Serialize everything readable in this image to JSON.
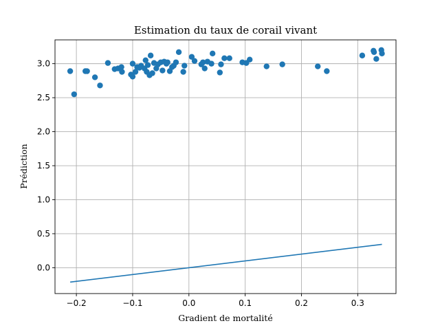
{
  "chart_data": {
    "type": "scatter",
    "title": "Estimation du taux de corail vivant",
    "xlabel": "Gradient de mortalité",
    "ylabel": "Prédiction",
    "xlim": [
      -0.238,
      0.368
    ],
    "ylim": [
      -0.38,
      3.35
    ],
    "grid": true,
    "xticks": [
      -0.2,
      -0.1,
      0.0,
      0.1,
      0.2,
      0.3
    ],
    "xtick_labels": [
      "−0.2",
      "−0.1",
      "0.0",
      "0.1",
      "0.2",
      "0.3"
    ],
    "yticks": [
      0.0,
      0.5,
      1.0,
      1.5,
      2.0,
      2.5,
      3.0
    ],
    "ytick_labels": [
      "0.0",
      "0.5",
      "1.0",
      "1.5",
      "2.0",
      "2.5",
      "3.0"
    ],
    "colors": {
      "series": "#1f77b4",
      "line": "#1f77b4"
    },
    "series": [
      {
        "type": "scatter",
        "points": [
          [
            -0.211,
            2.89
          ],
          [
            -0.204,
            2.55
          ],
          [
            -0.184,
            2.89
          ],
          [
            -0.181,
            2.89
          ],
          [
            -0.167,
            2.8
          ],
          [
            -0.158,
            2.68
          ],
          [
            -0.144,
            3.01
          ],
          [
            -0.132,
            2.92
          ],
          [
            -0.126,
            2.93
          ],
          [
            -0.12,
            2.95
          ],
          [
            -0.119,
            2.88
          ],
          [
            -0.103,
            2.84
          ],
          [
            -0.1,
            3.0
          ],
          [
            -0.1,
            2.81
          ],
          [
            -0.095,
            2.88
          ],
          [
            -0.092,
            2.95
          ],
          [
            -0.088,
            2.94
          ],
          [
            -0.085,
            2.97
          ],
          [
            -0.079,
            2.93
          ],
          [
            -0.077,
            3.05
          ],
          [
            -0.075,
            2.88
          ],
          [
            -0.073,
            2.98
          ],
          [
            -0.07,
            2.83
          ],
          [
            -0.068,
            3.12
          ],
          [
            -0.065,
            2.86
          ],
          [
            -0.062,
            3.01
          ],
          [
            -0.058,
            2.93
          ],
          [
            -0.055,
            2.99
          ],
          [
            -0.05,
            3.02
          ],
          [
            -0.047,
            2.9
          ],
          [
            -0.044,
            3.03
          ],
          [
            -0.04,
            3.0
          ],
          [
            -0.038,
            3.02
          ],
          [
            -0.034,
            2.89
          ],
          [
            -0.03,
            2.95
          ],
          [
            -0.027,
            2.97
          ],
          [
            -0.023,
            3.02
          ],
          [
            -0.018,
            3.17
          ],
          [
            -0.01,
            2.88
          ],
          [
            -0.008,
            2.97
          ],
          [
            0.005,
            3.1
          ],
          [
            0.01,
            3.04
          ],
          [
            0.022,
            2.99
          ],
          [
            0.025,
            3.02
          ],
          [
            0.028,
            2.93
          ],
          [
            0.033,
            3.03
          ],
          [
            0.04,
            3.0
          ],
          [
            0.042,
            3.15
          ],
          [
            0.055,
            2.87
          ],
          [
            0.057,
            2.99
          ],
          [
            0.063,
            3.08
          ],
          [
            0.072,
            3.08
          ],
          [
            0.095,
            3.02
          ],
          [
            0.102,
            3.01
          ],
          [
            0.108,
            3.06
          ],
          [
            0.138,
            2.96
          ],
          [
            0.166,
            2.99
          ],
          [
            0.229,
            2.96
          ],
          [
            0.245,
            2.89
          ],
          [
            0.308,
            3.12
          ],
          [
            0.328,
            3.19
          ],
          [
            0.329,
            3.17
          ],
          [
            0.333,
            3.07
          ],
          [
            0.342,
            3.2
          ],
          [
            0.343,
            3.15
          ]
        ]
      },
      {
        "type": "line",
        "points": [
          [
            -0.211,
            -0.211
          ],
          [
            0.343,
            0.343
          ]
        ]
      }
    ]
  }
}
